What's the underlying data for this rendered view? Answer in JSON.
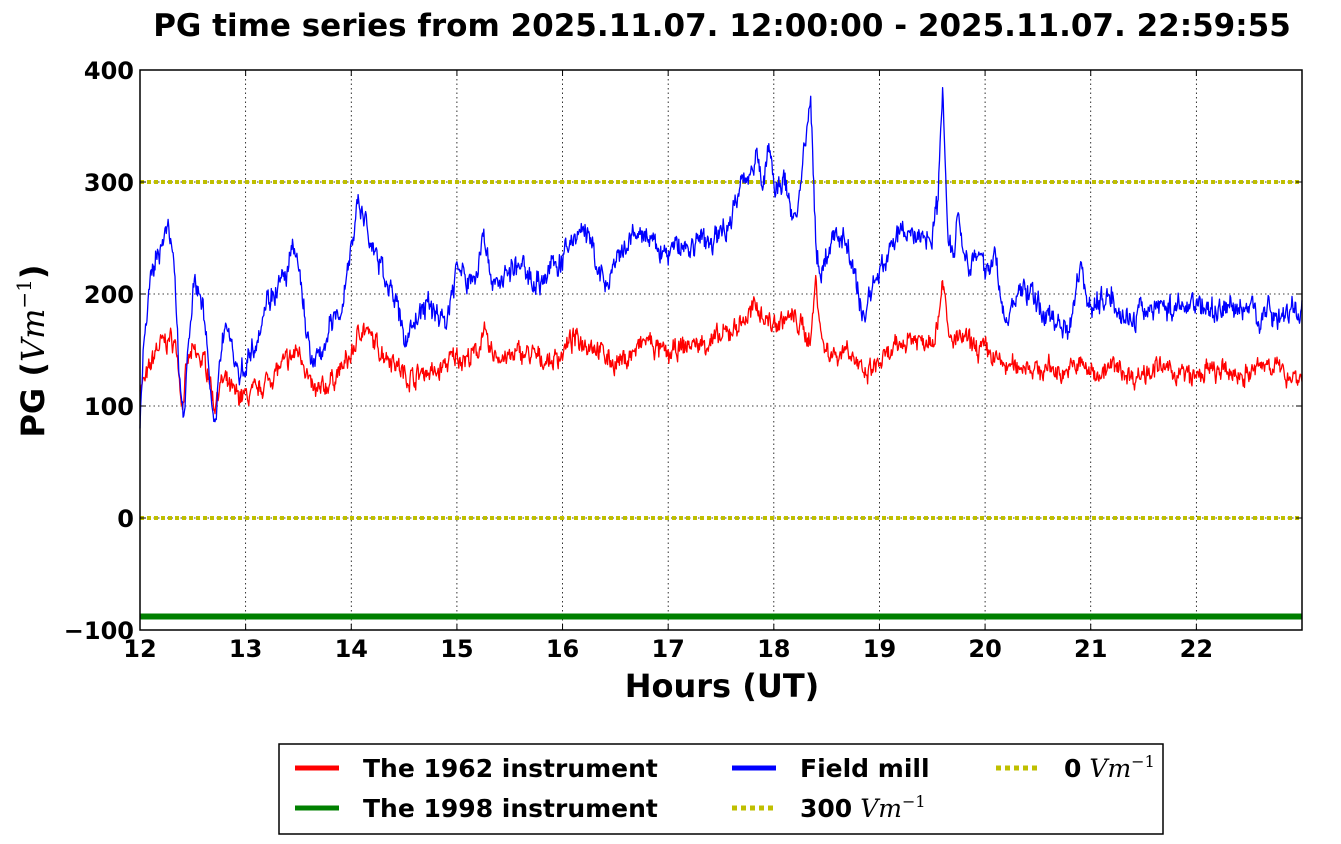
{
  "chart_data": {
    "type": "line",
    "title": "PG time series from 2025.11.07. 12:00:00 - 2025.11.07. 22:59:55",
    "xlabel": "Hours (UT)",
    "ylabel_prefix": "PG (",
    "ylabel_unit": "Vm",
    "ylabel_exp": "−1",
    "ylabel_suffix": ")",
    "xlim": [
      12,
      23
    ],
    "ylim": [
      -100,
      400
    ],
    "xticks": [
      12,
      13,
      14,
      15,
      16,
      17,
      18,
      19,
      20,
      21,
      22
    ],
    "yticks": [
      -100,
      0,
      100,
      200,
      300,
      400
    ],
    "ytick_labels": [
      "−100",
      "0",
      "100",
      "200",
      "300",
      "400"
    ],
    "grid": true,
    "legend_placement": "below plot, 3 columns",
    "unit_text": "Vm",
    "unit_exp": "−1",
    "series": [
      {
        "name": "The 1962 instrument",
        "color": "#ff0000",
        "style": "solid",
        "x": [
          12.0,
          12.05,
          12.1,
          12.15,
          12.2,
          12.25,
          12.3,
          12.35,
          12.4,
          12.45,
          12.5,
          12.55,
          12.6,
          12.65,
          12.7,
          12.75,
          12.8,
          12.85,
          12.9,
          12.95,
          13.0,
          13.1,
          13.2,
          13.3,
          13.4,
          13.5,
          13.55,
          13.6,
          13.65,
          13.7,
          13.8,
          13.9,
          14.0,
          14.05,
          14.1,
          14.2,
          14.3,
          14.4,
          14.5,
          14.6,
          14.7,
          14.8,
          14.9,
          15.0,
          15.1,
          15.2,
          15.25,
          15.3,
          15.4,
          15.5,
          15.6,
          15.7,
          15.8,
          15.9,
          16.0,
          16.1,
          16.2,
          16.3,
          16.4,
          16.5,
          16.6,
          16.7,
          16.8,
          16.9,
          17.0,
          17.1,
          17.2,
          17.3,
          17.4,
          17.5,
          17.6,
          17.7,
          17.8,
          17.85,
          17.9,
          18.0,
          18.1,
          18.2,
          18.3,
          18.35,
          18.4,
          18.45,
          18.5,
          18.6,
          18.7,
          18.8,
          18.85,
          18.9,
          19.0,
          19.1,
          19.2,
          19.3,
          19.4,
          19.5,
          19.55,
          19.6,
          19.65,
          19.7,
          19.8,
          19.9,
          20.0,
          20.1,
          20.2,
          20.3,
          20.4,
          20.5,
          20.6,
          20.7,
          20.8,
          20.9,
          21.0,
          21.1,
          21.2,
          21.3,
          21.4,
          21.5,
          21.6,
          21.7,
          21.8,
          21.9,
          22.0,
          22.1,
          22.2,
          22.3,
          22.4,
          22.5,
          22.6,
          22.7,
          22.8,
          22.9,
          23.0
        ],
        "values": [
          118,
          122,
          135,
          150,
          155,
          158,
          160,
          150,
          100,
          138,
          148,
          143,
          140,
          132,
          100,
          118,
          122,
          115,
          110,
          110,
          108,
          112,
          122,
          132,
          140,
          150,
          142,
          120,
          112,
          112,
          122,
          132,
          145,
          158,
          172,
          158,
          148,
          142,
          128,
          125,
          132,
          128,
          138,
          145,
          142,
          148,
          170,
          148,
          145,
          142,
          148,
          145,
          142,
          140,
          148,
          160,
          158,
          155,
          145,
          138,
          142,
          150,
          160,
          150,
          145,
          150,
          155,
          155,
          158,
          160,
          168,
          175,
          185,
          190,
          180,
          172,
          178,
          178,
          165,
          160,
          215,
          160,
          150,
          145,
          155,
          135,
          125,
          130,
          138,
          145,
          155,
          162,
          158,
          162,
          172,
          220,
          160,
          158,
          160,
          152,
          150,
          142,
          135,
          135,
          138,
          130,
          135,
          130,
          132,
          138,
          130,
          130,
          135,
          132,
          125,
          130,
          135,
          132,
          130,
          128,
          125,
          132,
          130,
          130,
          128,
          128,
          135,
          140,
          130,
          128,
          125
        ]
      },
      {
        "name": "The 1998 instrument",
        "color": "#008000",
        "style": "solid",
        "x": [
          12,
          23
        ],
        "values": [
          -88,
          -88
        ]
      },
      {
        "name": "Field mill",
        "color": "#0000ff",
        "style": "solid",
        "x": [
          12.0,
          12.03,
          12.08,
          12.12,
          12.17,
          12.22,
          12.27,
          12.32,
          12.37,
          12.42,
          12.45,
          12.5,
          12.55,
          12.6,
          12.63,
          12.67,
          12.7,
          12.72,
          12.75,
          12.8,
          12.85,
          12.9,
          12.95,
          13.0,
          13.1,
          13.2,
          13.3,
          13.4,
          13.45,
          13.5,
          13.55,
          13.6,
          13.65,
          13.7,
          13.8,
          13.9,
          14.0,
          14.05,
          14.1,
          14.2,
          14.3,
          14.4,
          14.5,
          14.6,
          14.7,
          14.8,
          14.9,
          15.0,
          15.1,
          15.2,
          15.25,
          15.3,
          15.4,
          15.5,
          15.6,
          15.7,
          15.8,
          15.9,
          16.0,
          16.1,
          16.2,
          16.3,
          16.4,
          16.5,
          16.6,
          16.7,
          16.8,
          16.9,
          17.0,
          17.1,
          17.2,
          17.3,
          17.4,
          17.5,
          17.6,
          17.7,
          17.8,
          17.85,
          17.9,
          17.95,
          18.0,
          18.1,
          18.2,
          18.3,
          18.35,
          18.4,
          18.45,
          18.5,
          18.6,
          18.7,
          18.8,
          18.85,
          18.9,
          19.0,
          19.1,
          19.2,
          19.3,
          19.4,
          19.5,
          19.55,
          19.6,
          19.65,
          19.7,
          19.75,
          19.8,
          19.9,
          20.0,
          20.1,
          20.2,
          20.3,
          20.4,
          20.5,
          20.6,
          20.7,
          20.8,
          20.9,
          21.0,
          21.1,
          21.2,
          21.3,
          21.4,
          21.5,
          21.6,
          21.7,
          21.8,
          21.9,
          22.0,
          22.1,
          22.2,
          22.3,
          22.4,
          22.5,
          22.6,
          22.7,
          22.8,
          22.9,
          23.0
        ],
        "values": [
          80,
          150,
          195,
          220,
          235,
          255,
          255,
          230,
          125,
          95,
          150,
          205,
          205,
          190,
          155,
          110,
          80,
          75,
          140,
          175,
          165,
          140,
          125,
          140,
          160,
          195,
          205,
          220,
          240,
          225,
          190,
          150,
          135,
          145,
          170,
          185,
          240,
          280,
          275,
          240,
          220,
          200,
          160,
          175,
          190,
          185,
          175,
          225,
          210,
          220,
          265,
          220,
          210,
          220,
          225,
          215,
          210,
          225,
          230,
          250,
          260,
          235,
          205,
          225,
          240,
          255,
          250,
          240,
          235,
          245,
          240,
          250,
          245,
          255,
          270,
          300,
          315,
          325,
          290,
          335,
          295,
          300,
          265,
          330,
          375,
          240,
          215,
          235,
          255,
          245,
          200,
          175,
          200,
          220,
          240,
          255,
          255,
          250,
          255,
          280,
          385,
          250,
          240,
          275,
          235,
          230,
          225,
          230,
          170,
          200,
          205,
          190,
          180,
          175,
          170,
          230,
          185,
          195,
          200,
          180,
          175,
          185,
          190,
          190,
          185,
          190,
          195,
          185,
          185,
          190,
          185,
          190,
          180,
          185,
          180,
          185,
          185
        ]
      },
      {
        "name": "300",
        "color": "#bfbf00",
        "style": "dotted",
        "x": [
          12,
          23
        ],
        "values": [
          300,
          300
        ]
      },
      {
        "name": "0",
        "color": "#bfbf00",
        "style": "dotted",
        "x": [
          12,
          23
        ],
        "values": [
          0,
          0
        ]
      }
    ]
  }
}
